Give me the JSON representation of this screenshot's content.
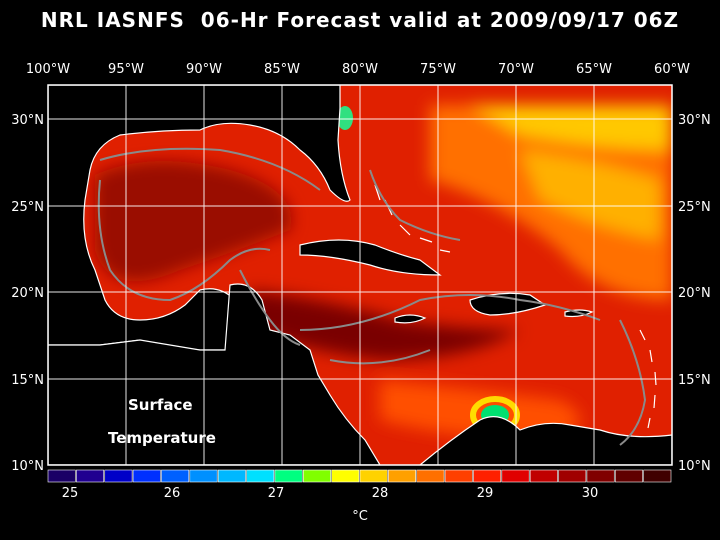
{
  "title": "NRL IASNFS  06-Hr Forecast valid at 2009/09/17 06Z",
  "lon_labels": [
    "100°W",
    "95°W",
    "90°W",
    "85°W",
    "80°W",
    "75°W",
    "70°W",
    "65°W",
    "60°W"
  ],
  "lat_labels": [
    "30°N",
    "25°N",
    "20°N",
    "15°N",
    "10°N"
  ],
  "annotation": {
    "line1": "Surface",
    "line2": "Temperature"
  },
  "colorbar": {
    "unit": "°C",
    "tick_labels": [
      "25",
      "26",
      "27",
      "28",
      "29",
      "30"
    ],
    "colors": [
      "#1a0066",
      "#200090",
      "#0000c8",
      "#0030ff",
      "#0060ff",
      "#0090ff",
      "#00b8ff",
      "#00e0ff",
      "#00ff80",
      "#80ff00",
      "#ffff00",
      "#ffd200",
      "#ffa000",
      "#ff7000",
      "#ff4000",
      "#ff2000",
      "#e00000",
      "#c00000",
      "#a00000",
      "#800000",
      "#600000",
      "#400000"
    ]
  },
  "colors": {
    "background": "#000000",
    "land": "#000000",
    "coast": "#ffffff",
    "contour": "#888888",
    "sea_warm": "#e00000",
    "sea_hot": "#5a0000"
  }
}
